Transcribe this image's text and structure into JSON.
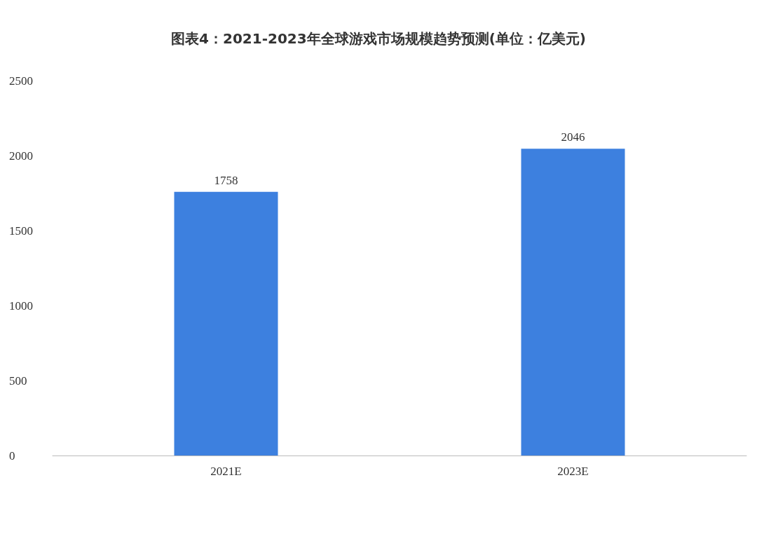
{
  "chart_data": {
    "type": "bar",
    "title": "图表4：2021-2023年全球游戏市场规模趋势预测(单位：亿美元)",
    "categories": [
      "2021E",
      "2023E"
    ],
    "values": [
      1758,
      2046
    ],
    "color": "#3d80df",
    "ylim": [
      0,
      2500
    ],
    "yticks": [
      0,
      500,
      1000,
      1500,
      2000,
      2500
    ],
    "grid": false,
    "data_labels": true
  }
}
